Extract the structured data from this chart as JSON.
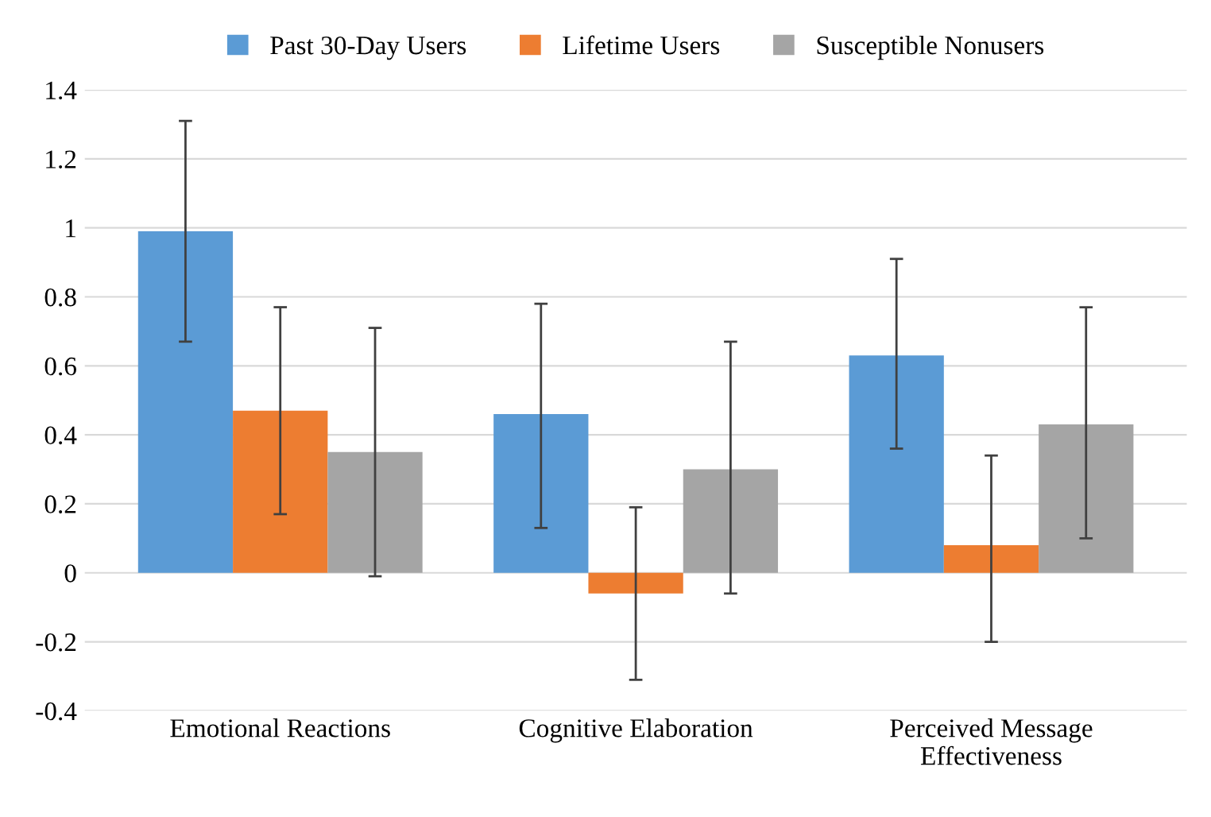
{
  "chart_data": {
    "type": "bar",
    "categories": [
      "Emotional Reactions",
      "Cognitive Elaboration",
      "Perceived Message\nEffectiveness"
    ],
    "series": [
      {
        "name": "Past 30-Day Users",
        "color": "#5b9bd5",
        "values": [
          0.99,
          0.46,
          0.63
        ],
        "errors": [
          [
            0.67,
            1.31
          ],
          [
            0.13,
            0.78
          ],
          [
            0.36,
            0.91
          ]
        ]
      },
      {
        "name": "Lifetime Users",
        "color": "#ed7d31",
        "values": [
          0.47,
          -0.06,
          0.08
        ],
        "errors": [
          [
            0.17,
            0.77
          ],
          [
            -0.31,
            0.19
          ],
          [
            -0.2,
            0.34
          ]
        ]
      },
      {
        "name": "Susceptible Nonusers",
        "color": "#a5a5a5",
        "values": [
          0.35,
          0.3,
          0.43
        ],
        "errors": [
          [
            -0.01,
            0.71
          ],
          [
            -0.06,
            0.67
          ],
          [
            0.1,
            0.77
          ]
        ]
      }
    ],
    "ylim": [
      -0.4,
      1.4
    ],
    "yticks": [
      -0.4,
      -0.2,
      0,
      0.2,
      0.4,
      0.6,
      0.8,
      1,
      1.2,
      1.4
    ],
    "grid": "y",
    "legend": "top"
  }
}
